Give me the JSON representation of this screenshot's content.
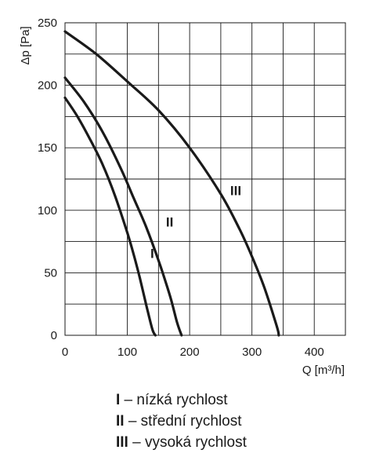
{
  "chart_data": {
    "type": "line",
    "title": "",
    "xlabel": "Q [m³/h]",
    "ylabel": "Δp [Pa]",
    "xlim": [
      0,
      450
    ],
    "ylim": [
      0,
      250
    ],
    "xticks": [
      0,
      100,
      200,
      300,
      400
    ],
    "yticks": [
      0,
      50,
      100,
      150,
      200,
      250
    ],
    "grid": true,
    "series": [
      {
        "name": "I",
        "x": [
          0,
          20,
          40,
          60,
          80,
          100,
          110,
          120,
          130,
          140,
          145
        ],
        "y": [
          190,
          175,
          157,
          137,
          112,
          82,
          65,
          46,
          25,
          5,
          0
        ]
      },
      {
        "name": "II",
        "x": [
          0,
          30,
          60,
          90,
          110,
          130,
          150,
          160,
          170,
          180,
          187
        ],
        "y": [
          206,
          187,
          163,
          133,
          110,
          87,
          60,
          45,
          29,
          10,
          0
        ]
      },
      {
        "name": "III",
        "x": [
          0,
          50,
          100,
          150,
          200,
          250,
          280,
          300,
          320,
          340,
          343
        ],
        "y": [
          243,
          225,
          203,
          180,
          150,
          113,
          85,
          63,
          38,
          7,
          0
        ]
      }
    ]
  },
  "legend": [
    {
      "key": "I",
      "text": " – nízká rychlost"
    },
    {
      "key": "II",
      "text": " – střední rychlost"
    },
    {
      "key": "III",
      "text": " – vysoká rychlost"
    }
  ]
}
